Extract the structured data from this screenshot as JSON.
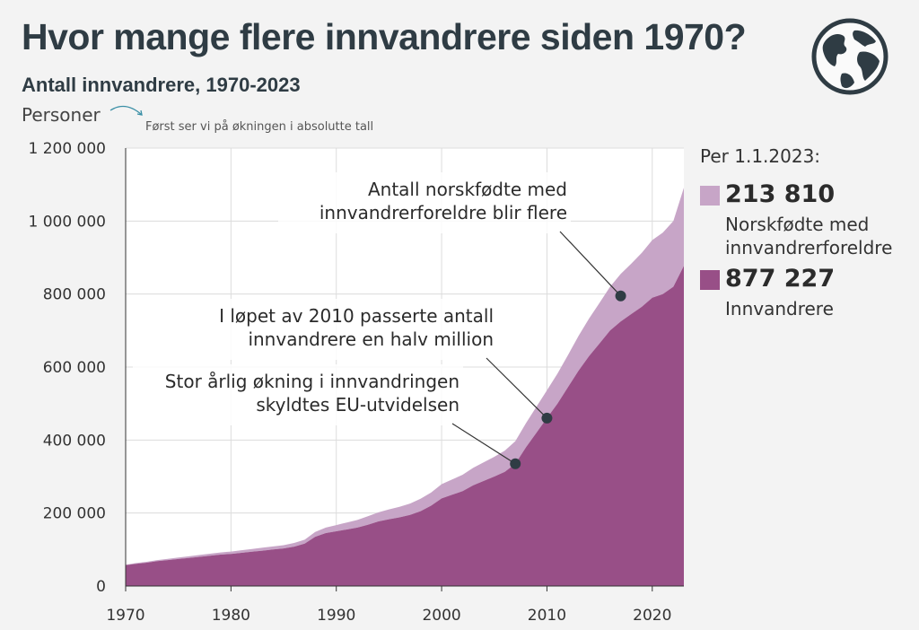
{
  "header": {
    "title": "Hvor mange flere innvandrere siden 1970?",
    "subtitle": "Antall innvandrere, 1970-2023",
    "y_unit_label": "Personer",
    "hint": "Først ser vi på økningen i absolutte tall"
  },
  "icon": "globe-icon",
  "legend": {
    "heading": "Per 1.1.2023:",
    "items": [
      {
        "value": "213 810",
        "label_line1": "Norskfødte med",
        "label_line2": "innvandrerforeldre",
        "color": "#c7a5c7"
      },
      {
        "value": "877 227",
        "label_line1": "Innvandrere",
        "label_line2": "",
        "color": "#984f87"
      }
    ]
  },
  "annotations": [
    {
      "lines": [
        "Antall norskfødte med",
        "innvandrerforeldre blir flere"
      ],
      "year": 2017,
      "value": 795000
    },
    {
      "lines": [
        "I løpet av 2010 passerte antall",
        "innvandrere en halv million"
      ],
      "year": 2010,
      "value": 460000
    },
    {
      "lines": [
        "Stor årlig økning i innvandringen",
        "skyldtes EU-utvidelsen"
      ],
      "year": 2007,
      "value": 335000
    }
  ],
  "chart_data": {
    "type": "area",
    "stacked": true,
    "x": [
      1970,
      1971,
      1972,
      1973,
      1974,
      1975,
      1976,
      1977,
      1978,
      1979,
      1980,
      1981,
      1982,
      1983,
      1984,
      1985,
      1986,
      1987,
      1988,
      1989,
      1990,
      1991,
      1992,
      1993,
      1994,
      1995,
      1996,
      1997,
      1998,
      1999,
      2000,
      2001,
      2002,
      2003,
      2004,
      2005,
      2006,
      2007,
      2008,
      2009,
      2010,
      2011,
      2012,
      2013,
      2014,
      2015,
      2016,
      2017,
      2018,
      2019,
      2020,
      2021,
      2022,
      2023
    ],
    "series": [
      {
        "name": "Innvandrere",
        "color": "#984f87",
        "values": [
          57000,
          61000,
          64000,
          68000,
          71000,
          74000,
          77000,
          80000,
          83000,
          86000,
          88000,
          91000,
          94000,
          97000,
          100000,
          103000,
          108000,
          116000,
          135000,
          145000,
          150000,
          155000,
          160000,
          168000,
          177000,
          183000,
          188000,
          195000,
          205000,
          220000,
          240000,
          250000,
          260000,
          276000,
          288000,
          300000,
          313000,
          335000,
          380000,
          420000,
          460000,
          500000,
          545000,
          590000,
          630000,
          665000,
          700000,
          725000,
          745000,
          765000,
          790000,
          800000,
          820000,
          877227
        ]
      },
      {
        "name": "Norskfødte med innvandrerforeldre",
        "color": "#c7a5c7",
        "values": [
          1500,
          2000,
          2500,
          3000,
          3500,
          4000,
          4500,
          5000,
          5500,
          6000,
          6500,
          7000,
          7500,
          8000,
          8500,
          9000,
          10000,
          11000,
          13000,
          15000,
          17000,
          19000,
          21000,
          23000,
          25000,
          27000,
          29000,
          31000,
          34000,
          36000,
          39000,
          42000,
          45000,
          48000,
          51000,
          54000,
          58000,
          62000,
          66000,
          71000,
          76000,
          82000,
          88000,
          95000,
          103000,
          111000,
          120000,
          130000,
          138000,
          148000,
          158000,
          168000,
          180000,
          213810
        ]
      }
    ],
    "xlim": [
      1970,
      2023
    ],
    "ylim": [
      0,
      1200000
    ],
    "x_ticks": [
      1970,
      1980,
      1990,
      2000,
      2010,
      2020
    ],
    "x_tick_labels": [
      "1970",
      "1980",
      "1990",
      "2000",
      "2010",
      "2020"
    ],
    "y_ticks": [
      0,
      200000,
      400000,
      600000,
      800000,
      1000000,
      1200000
    ],
    "y_tick_labels": [
      "0",
      "200 000",
      "400 000",
      "600 000",
      "800 000",
      "1 000 000",
      "1 200 000"
    ],
    "grid": true,
    "legend_position": "right"
  }
}
